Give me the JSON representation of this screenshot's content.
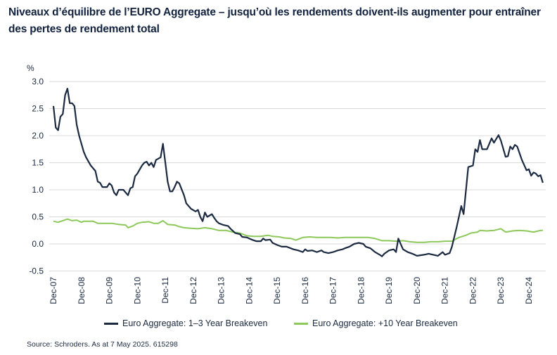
{
  "title": "Niveaux d’équilibre de l’EURO Aggregate – jusqu’où les rendements doivent-ils augmenter pour entraîner des pertes de rendement total",
  "source": "Source: Schroders. As at 7 May 2025. 615298",
  "chart_data": {
    "type": "line",
    "title": "Niveaux d’équilibre de l’EURO Aggregate – jusqu’où les rendements doivent-ils augmenter pour entraîner des pertes de rendement total",
    "ylabel": "%",
    "xlabel": "",
    "ylim": [
      -0.5,
      3.0
    ],
    "yticks": [
      "3.0",
      "2.5",
      "2.0",
      "1.5",
      "1.0",
      "0.5",
      "0.0",
      "-0.5"
    ],
    "xticks": [
      "Dec-07",
      "Dec-08",
      "Dec-09",
      "Dec-10",
      "Dec-11",
      "Dec-12",
      "Dec-13",
      "Dec-14",
      "Dec-15",
      "Dec-16",
      "Dec-17",
      "Dec-18",
      "Dec-19",
      "Dec-20",
      "Dec-21",
      "Dec-22",
      "Dec-23",
      "Dec-24"
    ],
    "grid": "horizontal",
    "legend_position": "bottom",
    "series": [
      {
        "name": "Euro Aggregate: 1–3 Year Breakeven",
        "color": "#1b2a41",
        "points": [
          [
            "2007-12",
            2.55
          ],
          [
            "2008-01",
            2.15
          ],
          [
            "2008-02",
            2.1
          ],
          [
            "2008-03",
            2.35
          ],
          [
            "2008-04",
            2.4
          ],
          [
            "2008-05",
            2.75
          ],
          [
            "2008-06",
            2.87
          ],
          [
            "2008-07",
            2.6
          ],
          [
            "2008-08",
            2.6
          ],
          [
            "2008-09",
            2.55
          ],
          [
            "2008-10",
            2.2
          ],
          [
            "2008-11",
            2.0
          ],
          [
            "2009-01",
            1.7
          ],
          [
            "2009-02",
            1.6
          ],
          [
            "2009-04",
            1.45
          ],
          [
            "2009-06",
            1.35
          ],
          [
            "2009-07",
            1.15
          ],
          [
            "2009-08",
            1.13
          ],
          [
            "2009-09",
            1.05
          ],
          [
            "2009-11",
            1.05
          ],
          [
            "2009-12",
            1.12
          ],
          [
            "2010-01",
            1.08
          ],
          [
            "2010-02",
            0.95
          ],
          [
            "2010-03",
            0.9
          ],
          [
            "2010-04",
            1.0
          ],
          [
            "2010-06",
            1.0
          ],
          [
            "2010-07",
            0.95
          ],
          [
            "2010-08",
            0.9
          ],
          [
            "2010-09",
            1.03
          ],
          [
            "2010-10",
            1.05
          ],
          [
            "2010-11",
            1.25
          ],
          [
            "2010-12",
            1.3
          ],
          [
            "2011-02",
            1.45
          ],
          [
            "2011-03",
            1.5
          ],
          [
            "2011-04",
            1.52
          ],
          [
            "2011-05",
            1.45
          ],
          [
            "2011-06",
            1.5
          ],
          [
            "2011-07",
            1.42
          ],
          [
            "2011-08",
            1.55
          ],
          [
            "2011-10",
            1.6
          ],
          [
            "2011-11",
            1.85
          ],
          [
            "2011-12",
            1.5
          ],
          [
            "2012-01",
            1.15
          ],
          [
            "2012-02",
            0.97
          ],
          [
            "2012-03",
            0.97
          ],
          [
            "2012-04",
            1.05
          ],
          [
            "2012-05",
            1.15
          ],
          [
            "2012-06",
            1.12
          ],
          [
            "2012-08",
            0.9
          ],
          [
            "2012-09",
            0.75
          ],
          [
            "2012-11",
            0.65
          ],
          [
            "2013-01",
            0.6
          ],
          [
            "2013-02",
            0.63
          ],
          [
            "2013-03",
            0.5
          ],
          [
            "2013-04",
            0.42
          ],
          [
            "2013-05",
            0.58
          ],
          [
            "2013-06",
            0.5
          ],
          [
            "2013-08",
            0.55
          ],
          [
            "2013-09",
            0.48
          ],
          [
            "2013-10",
            0.42
          ],
          [
            "2013-11",
            0.38
          ],
          [
            "2014-01",
            0.35
          ],
          [
            "2014-03",
            0.33
          ],
          [
            "2014-04",
            0.28
          ],
          [
            "2014-06",
            0.2
          ],
          [
            "2014-08",
            0.18
          ],
          [
            "2014-09",
            0.13
          ],
          [
            "2014-11",
            0.12
          ],
          [
            "2015-01",
            0.08
          ],
          [
            "2015-03",
            0.05
          ],
          [
            "2015-05",
            0.05
          ],
          [
            "2015-06",
            0.1
          ],
          [
            "2015-07",
            0.07
          ],
          [
            "2015-09",
            0.08
          ],
          [
            "2015-10",
            0.02
          ],
          [
            "2015-12",
            -0.02
          ],
          [
            "2016-02",
            -0.05
          ],
          [
            "2016-04",
            -0.05
          ],
          [
            "2016-07",
            -0.1
          ],
          [
            "2016-09",
            -0.12
          ],
          [
            "2016-11",
            -0.15
          ],
          [
            "2016-12",
            -0.1
          ],
          [
            "2017-01",
            -0.13
          ],
          [
            "2017-03",
            -0.12
          ],
          [
            "2017-05",
            -0.15
          ],
          [
            "2017-07",
            -0.12
          ],
          [
            "2017-08",
            -0.15
          ],
          [
            "2017-10",
            -0.17
          ],
          [
            "2017-12",
            -0.15
          ],
          [
            "2018-02",
            -0.12
          ],
          [
            "2018-04",
            -0.1
          ],
          [
            "2018-05",
            -0.08
          ],
          [
            "2018-07",
            -0.05
          ],
          [
            "2018-09",
            0.0
          ],
          [
            "2018-11",
            0.02
          ],
          [
            "2019-01",
            0.0
          ],
          [
            "2019-02",
            -0.05
          ],
          [
            "2019-04",
            -0.08
          ],
          [
            "2019-06",
            -0.15
          ],
          [
            "2019-08",
            -0.2
          ],
          [
            "2019-09",
            -0.23
          ],
          [
            "2019-10",
            -0.18
          ],
          [
            "2019-12",
            -0.12
          ],
          [
            "2020-02",
            -0.1
          ],
          [
            "2020-03",
            -0.15
          ],
          [
            "2020-04",
            0.1
          ],
          [
            "2020-05",
            0.0
          ],
          [
            "2020-06",
            -0.1
          ],
          [
            "2020-08",
            -0.15
          ],
          [
            "2020-10",
            -0.18
          ],
          [
            "2020-12",
            -0.22
          ],
          [
            "2021-03",
            -0.2
          ],
          [
            "2021-05",
            -0.18
          ],
          [
            "2021-07",
            -0.2
          ],
          [
            "2021-09",
            -0.22
          ],
          [
            "2021-11",
            -0.15
          ],
          [
            "2021-12",
            -0.2
          ],
          [
            "2022-02",
            -0.17
          ],
          [
            "2022-03",
            -0.05
          ],
          [
            "2022-05",
            0.31
          ],
          [
            "2022-07",
            0.7
          ],
          [
            "2022-08",
            0.55
          ],
          [
            "2022-10",
            1.42
          ],
          [
            "2022-12",
            1.45
          ],
          [
            "2023-01",
            1.75
          ],
          [
            "2023-02",
            1.7
          ],
          [
            "2023-03",
            1.92
          ],
          [
            "2023-04",
            1.75
          ],
          [
            "2023-06",
            1.75
          ],
          [
            "2023-08",
            1.95
          ],
          [
            "2023-09",
            1.87
          ],
          [
            "2023-11",
            2.01
          ],
          [
            "2023-12",
            1.91
          ],
          [
            "2024-02",
            1.61
          ],
          [
            "2024-03",
            1.62
          ],
          [
            "2024-04",
            1.8
          ],
          [
            "2024-05",
            1.75
          ],
          [
            "2024-06",
            1.83
          ],
          [
            "2024-07",
            1.8
          ],
          [
            "2024-09",
            1.55
          ],
          [
            "2024-11",
            1.36
          ],
          [
            "2024-12",
            1.38
          ],
          [
            "2025-01",
            1.26
          ],
          [
            "2025-02",
            1.32
          ],
          [
            "2025-03",
            1.3
          ],
          [
            "2025-04",
            1.25
          ],
          [
            "2025-05",
            1.27
          ],
          [
            "2025-06",
            1.13
          ]
        ]
      },
      {
        "name": "Euro Aggregate: +10 Year Breakeven",
        "color": "#8cc95a",
        "points": [
          [
            "2007-12",
            0.42
          ],
          [
            "2008-02",
            0.4
          ],
          [
            "2008-04",
            0.43
          ],
          [
            "2008-06",
            0.46
          ],
          [
            "2008-08",
            0.43
          ],
          [
            "2008-10",
            0.44
          ],
          [
            "2008-12",
            0.4
          ],
          [
            "2009-01",
            0.42
          ],
          [
            "2009-03",
            0.42
          ],
          [
            "2009-05",
            0.42
          ],
          [
            "2009-07",
            0.38
          ],
          [
            "2009-10",
            0.38
          ],
          [
            "2010-01",
            0.38
          ],
          [
            "2010-04",
            0.36
          ],
          [
            "2010-07",
            0.35
          ],
          [
            "2010-08",
            0.3
          ],
          [
            "2010-10",
            0.33
          ],
          [
            "2010-12",
            0.38
          ],
          [
            "2011-02",
            0.4
          ],
          [
            "2011-05",
            0.41
          ],
          [
            "2011-07",
            0.38
          ],
          [
            "2011-09",
            0.38
          ],
          [
            "2011-11",
            0.43
          ],
          [
            "2012-01",
            0.36
          ],
          [
            "2012-04",
            0.35
          ],
          [
            "2012-06",
            0.32
          ],
          [
            "2012-08",
            0.3
          ],
          [
            "2012-11",
            0.29
          ],
          [
            "2013-02",
            0.28
          ],
          [
            "2013-05",
            0.3
          ],
          [
            "2013-08",
            0.28
          ],
          [
            "2013-11",
            0.25
          ],
          [
            "2014-02",
            0.25
          ],
          [
            "2014-05",
            0.22
          ],
          [
            "2014-08",
            0.2
          ],
          [
            "2014-11",
            0.15
          ],
          [
            "2015-02",
            0.14
          ],
          [
            "2015-05",
            0.14
          ],
          [
            "2015-08",
            0.16
          ],
          [
            "2015-10",
            0.14
          ],
          [
            "2016-01",
            0.13
          ],
          [
            "2016-03",
            0.11
          ],
          [
            "2016-06",
            0.1
          ],
          [
            "2016-08",
            0.07
          ],
          [
            "2016-11",
            0.12
          ],
          [
            "2017-02",
            0.13
          ],
          [
            "2017-05",
            0.12
          ],
          [
            "2017-08",
            0.12
          ],
          [
            "2017-11",
            0.12
          ],
          [
            "2018-02",
            0.11
          ],
          [
            "2018-05",
            0.12
          ],
          [
            "2018-08",
            0.12
          ],
          [
            "2018-12",
            0.12
          ],
          [
            "2019-03",
            0.12
          ],
          [
            "2019-06",
            0.1
          ],
          [
            "2019-09",
            0.06
          ],
          [
            "2019-12",
            0.06
          ],
          [
            "2020-03",
            0.05
          ],
          [
            "2020-06",
            0.06
          ],
          [
            "2020-09",
            0.04
          ],
          [
            "2020-12",
            0.03
          ],
          [
            "2021-03",
            0.03
          ],
          [
            "2021-06",
            0.04
          ],
          [
            "2021-09",
            0.04
          ],
          [
            "2021-12",
            0.05
          ],
          [
            "2022-03",
            0.05
          ],
          [
            "2022-06",
            0.12
          ],
          [
            "2022-09",
            0.16
          ],
          [
            "2022-11",
            0.2
          ],
          [
            "2023-02",
            0.22
          ],
          [
            "2023-03",
            0.25
          ],
          [
            "2023-06",
            0.24
          ],
          [
            "2023-09",
            0.25
          ],
          [
            "2023-12",
            0.28
          ],
          [
            "2024-02",
            0.22
          ],
          [
            "2024-05",
            0.24
          ],
          [
            "2024-08",
            0.25
          ],
          [
            "2024-11",
            0.24
          ],
          [
            "2025-02",
            0.22
          ],
          [
            "2025-05",
            0.25
          ],
          [
            "2025-06",
            0.25
          ]
        ]
      }
    ]
  }
}
